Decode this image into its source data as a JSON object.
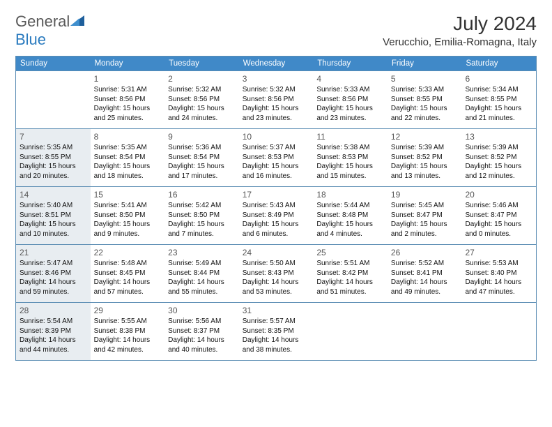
{
  "logo": {
    "general": "General",
    "blue": "Blue"
  },
  "title": "July 2024",
  "location": "Verucchio, Emilia-Romagna, Italy",
  "day_names": [
    "Sunday",
    "Monday",
    "Tuesday",
    "Wednesday",
    "Thursday",
    "Friday",
    "Saturday"
  ],
  "colors": {
    "header_bg": "#4089c8",
    "border": "#5a8cb3",
    "shaded": "#e8edf1",
    "text": "#111111"
  },
  "weeks": [
    [
      {
        "day": "",
        "sunrise": "",
        "sunset": "",
        "daylight": ""
      },
      {
        "day": "1",
        "sunrise": "Sunrise: 5:31 AM",
        "sunset": "Sunset: 8:56 PM",
        "daylight": "Daylight: 15 hours and 25 minutes."
      },
      {
        "day": "2",
        "sunrise": "Sunrise: 5:32 AM",
        "sunset": "Sunset: 8:56 PM",
        "daylight": "Daylight: 15 hours and 24 minutes."
      },
      {
        "day": "3",
        "sunrise": "Sunrise: 5:32 AM",
        "sunset": "Sunset: 8:56 PM",
        "daylight": "Daylight: 15 hours and 23 minutes."
      },
      {
        "day": "4",
        "sunrise": "Sunrise: 5:33 AM",
        "sunset": "Sunset: 8:56 PM",
        "daylight": "Daylight: 15 hours and 23 minutes."
      },
      {
        "day": "5",
        "sunrise": "Sunrise: 5:33 AM",
        "sunset": "Sunset: 8:55 PM",
        "daylight": "Daylight: 15 hours and 22 minutes."
      },
      {
        "day": "6",
        "sunrise": "Sunrise: 5:34 AM",
        "sunset": "Sunset: 8:55 PM",
        "daylight": "Daylight: 15 hours and 21 minutes."
      }
    ],
    [
      {
        "day": "7",
        "shaded": true,
        "sunrise": "Sunrise: 5:35 AM",
        "sunset": "Sunset: 8:55 PM",
        "daylight": "Daylight: 15 hours and 20 minutes."
      },
      {
        "day": "8",
        "sunrise": "Sunrise: 5:35 AM",
        "sunset": "Sunset: 8:54 PM",
        "daylight": "Daylight: 15 hours and 18 minutes."
      },
      {
        "day": "9",
        "sunrise": "Sunrise: 5:36 AM",
        "sunset": "Sunset: 8:54 PM",
        "daylight": "Daylight: 15 hours and 17 minutes."
      },
      {
        "day": "10",
        "sunrise": "Sunrise: 5:37 AM",
        "sunset": "Sunset: 8:53 PM",
        "daylight": "Daylight: 15 hours and 16 minutes."
      },
      {
        "day": "11",
        "sunrise": "Sunrise: 5:38 AM",
        "sunset": "Sunset: 8:53 PM",
        "daylight": "Daylight: 15 hours and 15 minutes."
      },
      {
        "day": "12",
        "sunrise": "Sunrise: 5:39 AM",
        "sunset": "Sunset: 8:52 PM",
        "daylight": "Daylight: 15 hours and 13 minutes."
      },
      {
        "day": "13",
        "sunrise": "Sunrise: 5:39 AM",
        "sunset": "Sunset: 8:52 PM",
        "daylight": "Daylight: 15 hours and 12 minutes."
      }
    ],
    [
      {
        "day": "14",
        "shaded": true,
        "sunrise": "Sunrise: 5:40 AM",
        "sunset": "Sunset: 8:51 PM",
        "daylight": "Daylight: 15 hours and 10 minutes."
      },
      {
        "day": "15",
        "sunrise": "Sunrise: 5:41 AM",
        "sunset": "Sunset: 8:50 PM",
        "daylight": "Daylight: 15 hours and 9 minutes."
      },
      {
        "day": "16",
        "sunrise": "Sunrise: 5:42 AM",
        "sunset": "Sunset: 8:50 PM",
        "daylight": "Daylight: 15 hours and 7 minutes."
      },
      {
        "day": "17",
        "sunrise": "Sunrise: 5:43 AM",
        "sunset": "Sunset: 8:49 PM",
        "daylight": "Daylight: 15 hours and 6 minutes."
      },
      {
        "day": "18",
        "sunrise": "Sunrise: 5:44 AM",
        "sunset": "Sunset: 8:48 PM",
        "daylight": "Daylight: 15 hours and 4 minutes."
      },
      {
        "day": "19",
        "sunrise": "Sunrise: 5:45 AM",
        "sunset": "Sunset: 8:47 PM",
        "daylight": "Daylight: 15 hours and 2 minutes."
      },
      {
        "day": "20",
        "sunrise": "Sunrise: 5:46 AM",
        "sunset": "Sunset: 8:47 PM",
        "daylight": "Daylight: 15 hours and 0 minutes."
      }
    ],
    [
      {
        "day": "21",
        "shaded": true,
        "sunrise": "Sunrise: 5:47 AM",
        "sunset": "Sunset: 8:46 PM",
        "daylight": "Daylight: 14 hours and 59 minutes."
      },
      {
        "day": "22",
        "sunrise": "Sunrise: 5:48 AM",
        "sunset": "Sunset: 8:45 PM",
        "daylight": "Daylight: 14 hours and 57 minutes."
      },
      {
        "day": "23",
        "sunrise": "Sunrise: 5:49 AM",
        "sunset": "Sunset: 8:44 PM",
        "daylight": "Daylight: 14 hours and 55 minutes."
      },
      {
        "day": "24",
        "sunrise": "Sunrise: 5:50 AM",
        "sunset": "Sunset: 8:43 PM",
        "daylight": "Daylight: 14 hours and 53 minutes."
      },
      {
        "day": "25",
        "sunrise": "Sunrise: 5:51 AM",
        "sunset": "Sunset: 8:42 PM",
        "daylight": "Daylight: 14 hours and 51 minutes."
      },
      {
        "day": "26",
        "sunrise": "Sunrise: 5:52 AM",
        "sunset": "Sunset: 8:41 PM",
        "daylight": "Daylight: 14 hours and 49 minutes."
      },
      {
        "day": "27",
        "sunrise": "Sunrise: 5:53 AM",
        "sunset": "Sunset: 8:40 PM",
        "daylight": "Daylight: 14 hours and 47 minutes."
      }
    ],
    [
      {
        "day": "28",
        "shaded": true,
        "sunrise": "Sunrise: 5:54 AM",
        "sunset": "Sunset: 8:39 PM",
        "daylight": "Daylight: 14 hours and 44 minutes."
      },
      {
        "day": "29",
        "sunrise": "Sunrise: 5:55 AM",
        "sunset": "Sunset: 8:38 PM",
        "daylight": "Daylight: 14 hours and 42 minutes."
      },
      {
        "day": "30",
        "sunrise": "Sunrise: 5:56 AM",
        "sunset": "Sunset: 8:37 PM",
        "daylight": "Daylight: 14 hours and 40 minutes."
      },
      {
        "day": "31",
        "sunrise": "Sunrise: 5:57 AM",
        "sunset": "Sunset: 8:35 PM",
        "daylight": "Daylight: 14 hours and 38 minutes."
      },
      {
        "day": "",
        "sunrise": "",
        "sunset": "",
        "daylight": ""
      },
      {
        "day": "",
        "sunrise": "",
        "sunset": "",
        "daylight": ""
      },
      {
        "day": "",
        "sunrise": "",
        "sunset": "",
        "daylight": ""
      }
    ]
  ]
}
